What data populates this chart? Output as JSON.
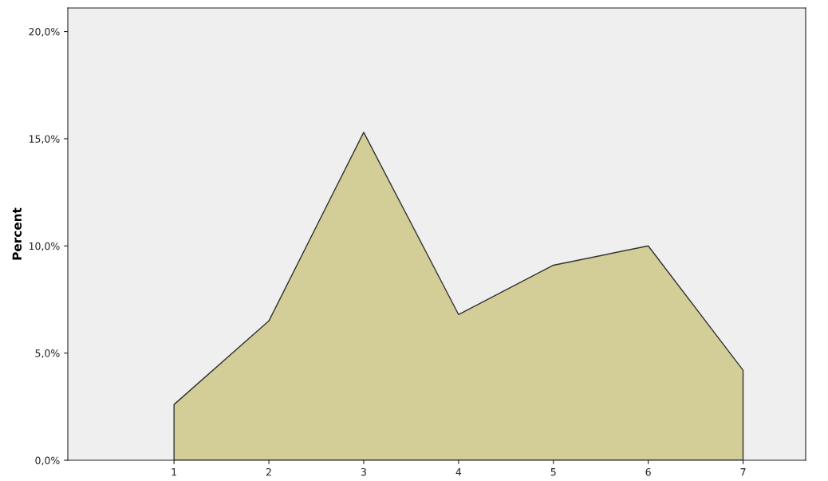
{
  "chart_data": {
    "type": "area",
    "ylabel": "Percent",
    "categories": [
      "1",
      "2",
      "3",
      "4",
      "5",
      "6",
      "7"
    ],
    "series": [
      {
        "color": "#d3ce97",
        "values": [
          2.6,
          6.5,
          15.3,
          6.8,
          9.1,
          10.0,
          4.2
        ]
      }
    ],
    "ylim": [
      0,
      21.1
    ],
    "yticks": [
      {
        "value": 0,
        "label": "0,0%"
      },
      {
        "value": 5,
        "label": "5,0%"
      },
      {
        "value": 10,
        "label": "10,0%"
      },
      {
        "value": 15,
        "label": "15,0%"
      },
      {
        "value": 20,
        "label": "20,0%"
      }
    ],
    "grid": false
  }
}
